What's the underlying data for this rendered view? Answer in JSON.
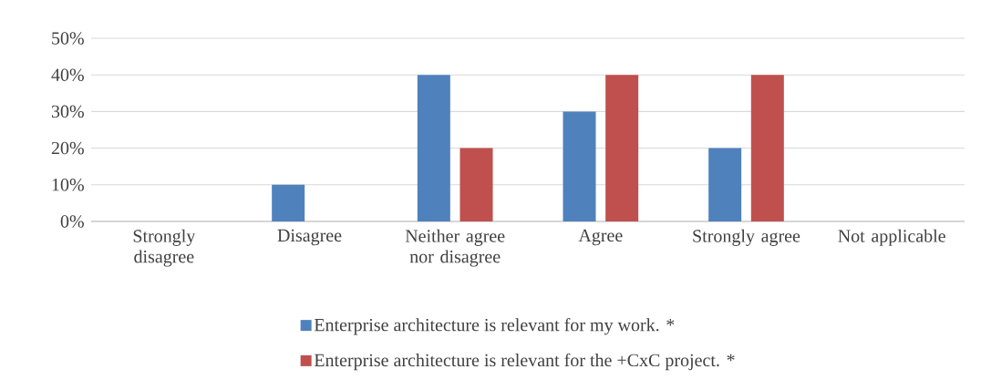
{
  "chart_data": {
    "type": "bar",
    "categories": [
      "Strongly disagree",
      "Disagree",
      "Neither agree nor disagree",
      "Agree",
      "Strongly agree",
      "Not applicable"
    ],
    "series": [
      {
        "name": "Enterprise architecture is relevant for my work. *",
        "color": "#4f81bd",
        "values": [
          0,
          10,
          40,
          30,
          20,
          0
        ]
      },
      {
        "name": "Enterprise architecture is relevant for the +CxC project. *",
        "color": "#c0504d",
        "values": [
          0,
          0,
          20,
          40,
          40,
          0
        ]
      }
    ],
    "ylim": [
      0,
      50
    ],
    "yticks": [
      {
        "value": 0,
        "label": "0%"
      },
      {
        "value": 10,
        "label": "10%"
      },
      {
        "value": 20,
        "label": "20%"
      },
      {
        "value": 30,
        "label": "30%"
      },
      {
        "value": 40,
        "label": "40%"
      },
      {
        "value": 50,
        "label": "50%"
      }
    ],
    "grid": "y",
    "legend": "bottom"
  }
}
